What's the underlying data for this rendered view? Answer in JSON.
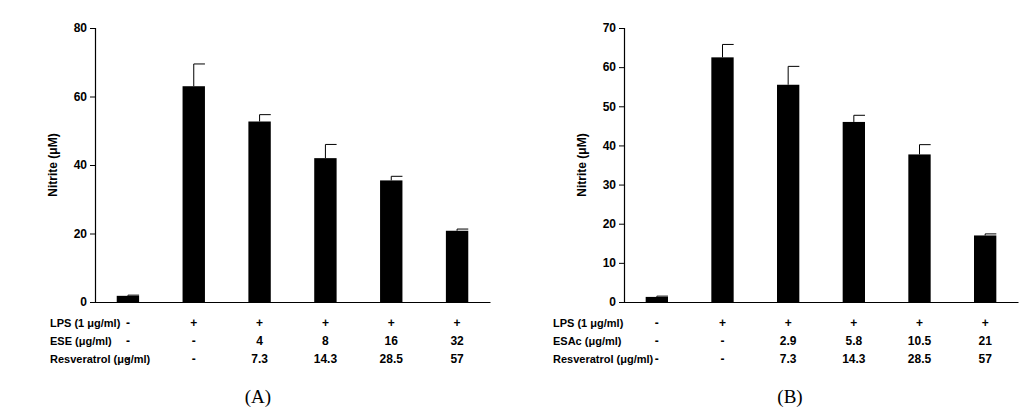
{
  "chart_data": [
    {
      "type": "bar",
      "title": "(A)",
      "y_label": "Nitrite (μM)",
      "color": "#000000",
      "ylim": [
        0,
        80
      ],
      "yticks": [
        0,
        20,
        40,
        60,
        80
      ],
      "values": [
        1.8,
        63,
        52.7,
        42,
        35.5,
        20.8
      ],
      "errors": [
        0.2,
        6.5,
        2,
        4,
        1.2,
        0.5
      ],
      "category_rows": [
        {
          "label": "LPS (1 μg/ml)",
          "values": [
            "-",
            "+",
            "+",
            "+",
            "+",
            "+"
          ]
        },
        {
          "label": "ESE (μg/ml)",
          "values": [
            "-",
            "-",
            "4",
            "8",
            "16",
            "32"
          ]
        },
        {
          "label": "Resveratrol (μg/ml)",
          "values": [
            "-",
            "-",
            "7.3",
            "14.3",
            "28.5",
            "57"
          ]
        }
      ]
    },
    {
      "type": "bar",
      "title": "(B)",
      "y_label": "Nitrite (μM)",
      "color": "#000000",
      "ylim": [
        0,
        70
      ],
      "yticks": [
        0,
        10,
        20,
        30,
        40,
        50,
        60,
        70
      ],
      "values": [
        1.3,
        62.5,
        55.5,
        46,
        37.7,
        17
      ],
      "errors": [
        0.2,
        3.3,
        4.7,
        1.7,
        2.5,
        0.4
      ],
      "category_rows": [
        {
          "label": "LPS (1 μg/ml)",
          "values": [
            "-",
            "+",
            "+",
            "+",
            "+",
            "+"
          ]
        },
        {
          "label": "ESAc (μg/ml)",
          "values": [
            "-",
            "-",
            "2.9",
            "5.8",
            "10.5",
            "21"
          ]
        },
        {
          "label": "Resveratrol (μg/ml)",
          "values": [
            "-",
            "-",
            "7.3",
            "14.3",
            "28.5",
            "57"
          ]
        }
      ]
    }
  ]
}
